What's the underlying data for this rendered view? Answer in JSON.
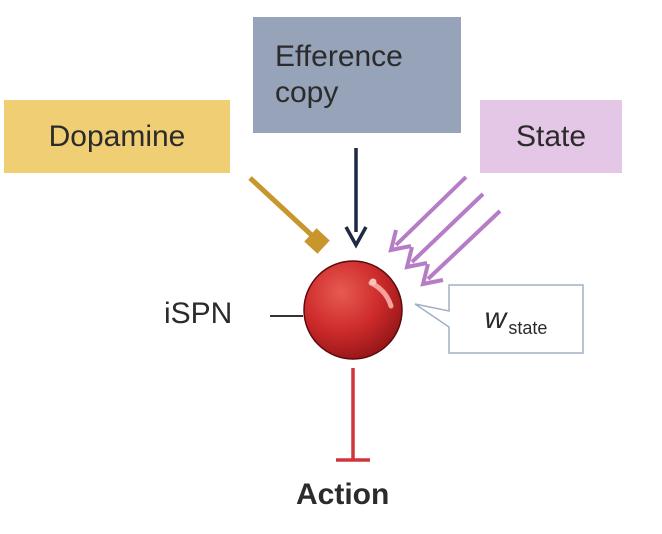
{
  "inputs": {
    "dopamine": {
      "label": "Dopamine",
      "color": "#f0cf74"
    },
    "efference": {
      "line1": "Efference",
      "line2": "copy",
      "color": "#96a3b8"
    },
    "state": {
      "label": "State",
      "color": "#e4c6e6"
    }
  },
  "neuron": {
    "label": "iSPN",
    "color": "#cc2a2a"
  },
  "weight": {
    "symbol": "w",
    "subscript": "state"
  },
  "output": {
    "label": "Action"
  },
  "colors": {
    "dopamine_arrow": "#c8962c",
    "efference_arrow": "#1d2a44",
    "state_arrows": "#b67cc6",
    "action_line": "#d0353b",
    "ispn_line": "#333333"
  }
}
